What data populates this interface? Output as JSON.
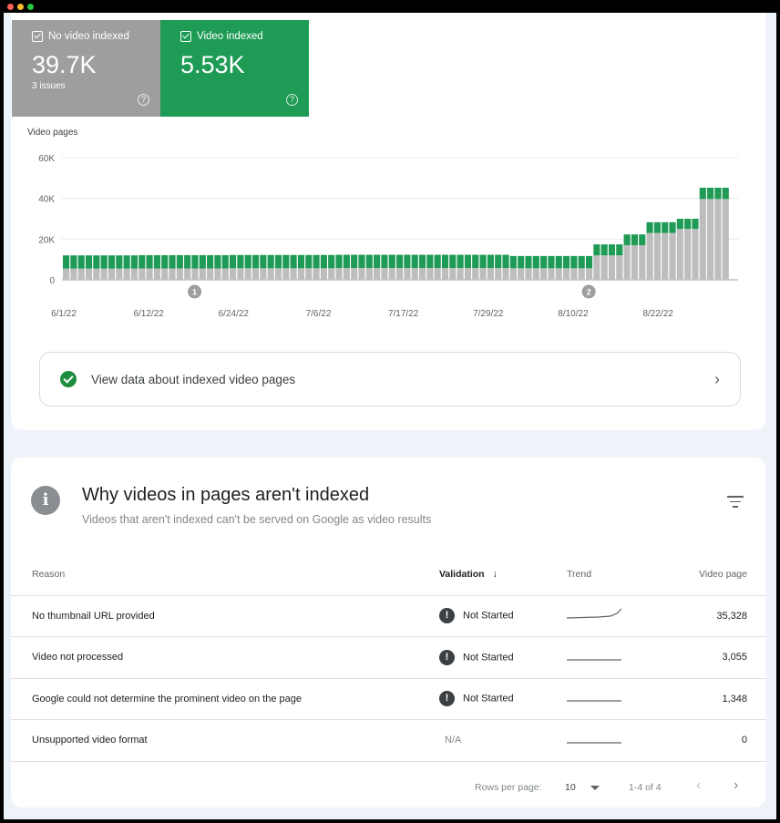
{
  "tiles": {
    "no_video": {
      "label": "No video indexed",
      "value": "39.7K",
      "sub": "3 issues"
    },
    "video": {
      "label": "Video indexed",
      "value": "5.53K"
    }
  },
  "chart_data": {
    "type": "bar",
    "ylabel": "Video pages",
    "yticks": [
      "60K",
      "40K",
      "20K",
      "0"
    ],
    "ylim": [
      0,
      60000
    ],
    "xticks": [
      "6/1/22",
      "6/12/22",
      "6/24/22",
      "7/6/22",
      "7/17/22",
      "7/29/22",
      "8/10/22",
      "8/22/22"
    ],
    "annotations": [
      "1",
      "2"
    ],
    "series": [
      {
        "name": "No video indexed",
        "color": "#bdbdbd",
        "values": [
          5500,
          5500,
          5500,
          5500,
          5500,
          5500,
          5500,
          5500,
          5500,
          5500,
          5600,
          5600,
          5600,
          5600,
          5600,
          5600,
          5600,
          5600,
          5600,
          5600,
          5600,
          5600,
          5700,
          5700,
          5700,
          5700,
          5700,
          5700,
          5700,
          5700,
          5700,
          5700,
          5700,
          5700,
          5700,
          5700,
          5800,
          5800,
          5800,
          5800,
          5800,
          5800,
          5800,
          5800,
          5800,
          5800,
          5800,
          5800,
          5800,
          5800,
          5800,
          5800,
          5800,
          5800,
          5800,
          5800,
          5800,
          5800,
          5800,
          5700,
          5700,
          5700,
          5700,
          5700,
          5700,
          5700,
          5700,
          5700,
          5700,
          5700,
          12000,
          12000,
          12000,
          12000,
          17000,
          17000,
          17000,
          23000,
          23000,
          23000,
          23000,
          25000,
          25000,
          25000,
          39700,
          39700,
          39700,
          39700
        ]
      },
      {
        "name": "Video indexed",
        "color": "#1e9b55",
        "values": [
          6500,
          6500,
          6500,
          6500,
          6500,
          6500,
          6500,
          6500,
          6500,
          6500,
          6500,
          6500,
          6500,
          6500,
          6500,
          6500,
          6500,
          6500,
          6500,
          6500,
          6500,
          6500,
          6500,
          6500,
          6500,
          6500,
          6500,
          6500,
          6500,
          6500,
          6500,
          6500,
          6500,
          6500,
          6500,
          6500,
          6500,
          6500,
          6500,
          6500,
          6500,
          6500,
          6500,
          6500,
          6500,
          6500,
          6500,
          6500,
          6500,
          6500,
          6500,
          6500,
          6500,
          6500,
          6500,
          6500,
          6500,
          6500,
          6500,
          6000,
          6000,
          6000,
          6000,
          6000,
          6000,
          6000,
          6000,
          6000,
          6000,
          6000,
          5400,
          5400,
          5400,
          5400,
          5300,
          5300,
          5300,
          5300,
          5300,
          5300,
          5300,
          5000,
          5000,
          5000,
          5530,
          5530,
          5530,
          5530
        ]
      }
    ]
  },
  "link": {
    "label": "View data about indexed video pages"
  },
  "section": {
    "title": "Why videos in pages aren't indexed",
    "subtitle": "Videos that aren't indexed can't be served on Google as video results"
  },
  "table": {
    "headers": {
      "reason": "Reason",
      "validation": "Validation",
      "sort_arrow": "↓",
      "trend": "Trend",
      "pages": "Video page"
    },
    "rows": [
      {
        "reason": "No thumbnail URL provided",
        "validation": "Not Started",
        "pages": "35,328",
        "trend_shape": "rising"
      },
      {
        "reason": "Video not processed",
        "validation": "Not Started",
        "pages": "3,055",
        "trend_shape": "flat"
      },
      {
        "reason": "Google could not determine the prominent video on the page",
        "validation": "Not Started",
        "pages": "1,348",
        "trend_shape": "flat"
      },
      {
        "reason": "Unsupported video format",
        "validation": "N/A",
        "pages": "0",
        "trend_shape": "flat"
      }
    ]
  },
  "pager": {
    "rows_per_page_label": "Rows per page:",
    "rows_per_page": "10",
    "range": "1-4 of 4"
  }
}
